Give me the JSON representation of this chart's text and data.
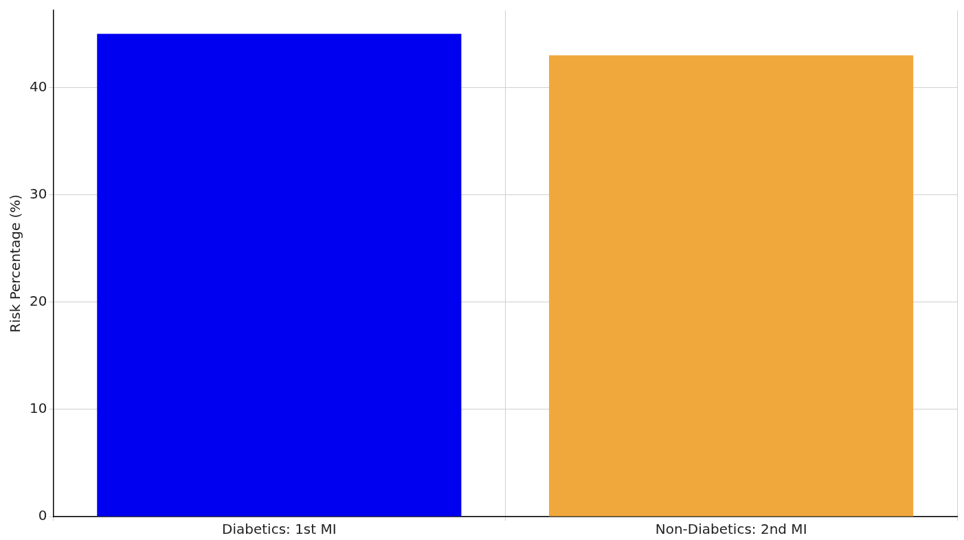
{
  "chart_data": {
    "type": "bar",
    "ylabel": "Risk Percentage (%)",
    "categories": [
      "Diabetics: 1st MI",
      "Non-Diabetics: 2nd MI"
    ],
    "values": [
      45,
      43
    ],
    "colors": [
      "#0000f0",
      "#f0a83c"
    ],
    "ylim": [
      0,
      47.2
    ],
    "yticks": [
      0,
      10,
      20,
      30,
      40
    ],
    "grid": true
  }
}
